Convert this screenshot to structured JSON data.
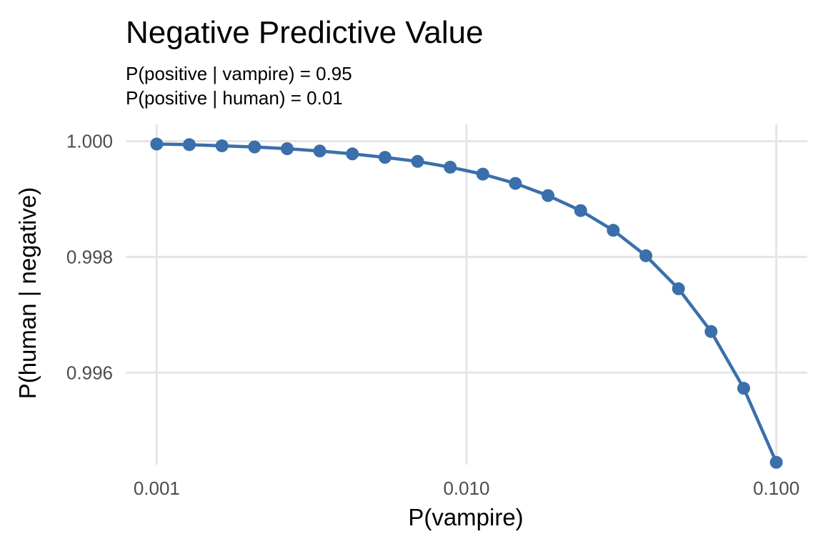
{
  "chart_data": {
    "type": "line",
    "title": "Negative Predictive Value",
    "subtitle_lines": [
      "P(positive | vampire) = 0.95",
      "P(positive | human) = 0.01"
    ],
    "xlabel": "P(vampire)",
    "ylabel": "P(human | negative)",
    "x_scale": "log10",
    "xlim": [
      0.001,
      0.1
    ],
    "ylim": [
      0.99441,
      1.00029
    ],
    "x_ticks": [
      0.001,
      0.01,
      0.1
    ],
    "x_tick_labels": [
      "0.001",
      "0.010",
      "0.100"
    ],
    "y_ticks": [
      0.996,
      0.998,
      1.0
    ],
    "y_tick_labels": [
      "0.996",
      "0.998",
      "1.000"
    ],
    "grid": true,
    "color": "#3A6FAB",
    "series": [
      {
        "x": [
          0.001,
          0.001274,
          0.001624,
          0.002069,
          0.002637,
          0.00336,
          0.004281,
          0.005456,
          0.006952,
          0.008859,
          0.01129,
          0.01438,
          0.01833,
          0.02336,
          0.02976,
          0.03793,
          0.04833,
          0.06158,
          0.07848,
          0.1
        ],
        "y": [
          0.99995,
          0.99994,
          0.99992,
          0.9999,
          0.99987,
          0.99983,
          0.99978,
          0.99972,
          0.99965,
          0.99955,
          0.99943,
          0.99927,
          0.99906,
          0.9988,
          0.99846,
          0.99802,
          0.99745,
          0.99671,
          0.99573,
          0.99445
        ]
      }
    ]
  }
}
